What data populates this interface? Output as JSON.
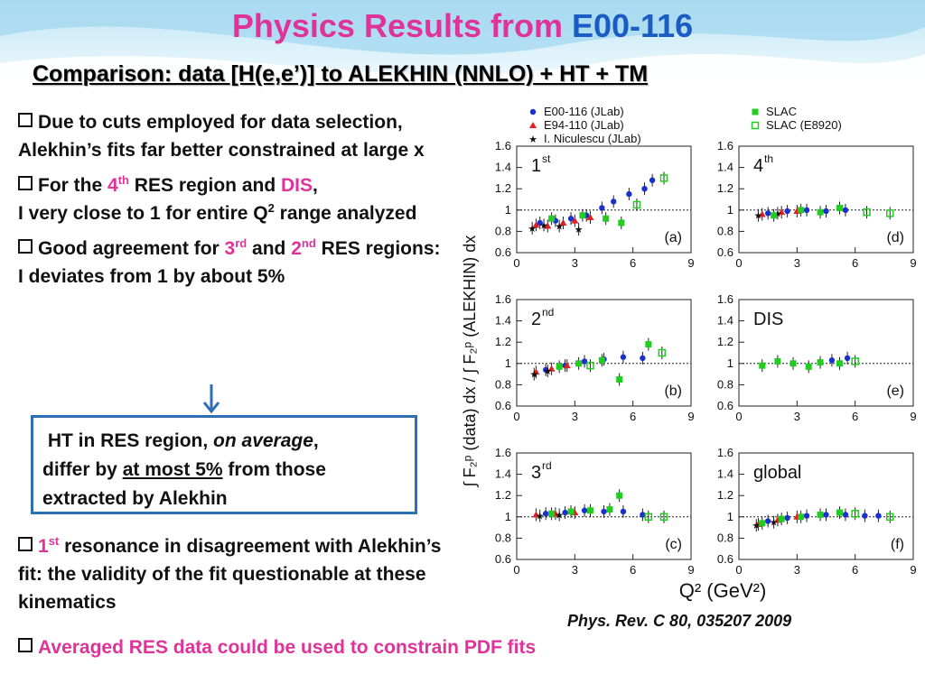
{
  "slide": {
    "title_main": "Physics Results from ",
    "title_accent": "E00-116",
    "subtitle": "Comparison: data [H(e,e’)] to ALEKHIN (NNLO) + HT + TM",
    "colors": {
      "title": "#e0339a",
      "accent": "#1a5bc4",
      "box_border": "#2d6fb7"
    }
  },
  "bullets": [
    {
      "text": "Due to cuts employed for data selection, Alekhin’s fits far better constrained at large x"
    },
    {
      "parts": [
        "For the ",
        "4",
        "th",
        " RES region and ",
        "DIS",
        ",",
        "I very close to 1 for entire Q",
        "2",
        " range analyzed"
      ]
    },
    {
      "parts": [
        "Good agreement for ",
        "3",
        "rd",
        " and ",
        "2",
        "nd",
        " RES regions: I deviates from 1 by about 5%"
      ]
    }
  ],
  "ht_box": {
    "line1": "HT in RES region, ",
    "line1_italic": "on average",
    "line1_end": ",",
    "line2a": "differ by ",
    "line2_underline": "at most 5%",
    "line2b": " from those",
    "line3": "extracted by Alekhin"
  },
  "bullet_res1": {
    "parts": [
      "1",
      "st",
      " resonance in disagreement with Alekhin’s fit: the validity of the fit questionable at these kinematics"
    ]
  },
  "bullet_last": "Averaged RES data could be used to constrain PDF fits",
  "citation": "Phys. Rev. C 80, 035207 2009",
  "figure": {
    "legend": [
      {
        "label": "E00-116 (JLab)",
        "color": "#1a2fd0",
        "marker": "circle"
      },
      {
        "label": "E94-110 (JLab)",
        "color": "#e02020",
        "marker": "triangle"
      },
      {
        "label": "I. Niculescu (JLab)",
        "color": "#111111",
        "marker": "star"
      },
      {
        "label": "SLAC",
        "color": "#22cc22",
        "marker": "square"
      },
      {
        "label": "SLAC (E8920)",
        "color": "#22cc22",
        "marker": "open-square"
      }
    ],
    "y_axis_label": "∫ F₂ᵖ (data) dx / ∫ F₂ᵖ (ALEKHIN) dx",
    "x_axis_label": "Q² (GeV²)",
    "x_ticks": [
      "0",
      "3",
      "6",
      "9"
    ],
    "y_ticks": [
      "0.6",
      "0.8",
      "1",
      "1.2",
      "1.4",
      "1.6"
    ]
  },
  "chart_data": [
    {
      "type": "scatter",
      "panel": "(a)",
      "tag": "1st",
      "xlim": [
        0,
        9
      ],
      "ylim": [
        0.6,
        1.6
      ],
      "series": [
        {
          "name": "E00-116 (JLab)",
          "x": [
            1.2,
            2.0,
            2.8,
            3.6,
            4.4,
            5.0,
            5.8,
            6.6,
            7.0
          ],
          "y": [
            0.88,
            0.9,
            0.92,
            0.95,
            1.02,
            1.08,
            1.15,
            1.2,
            1.28
          ]
        },
        {
          "name": "E94-110 (JLab)",
          "x": [
            1.0,
            1.6,
            2.4,
            3.0,
            3.8
          ],
          "y": [
            0.86,
            0.85,
            0.88,
            0.9,
            0.93
          ]
        },
        {
          "name": "I. Niculescu (JLab)",
          "x": [
            0.8,
            1.4,
            2.2,
            3.2
          ],
          "y": [
            0.83,
            0.86,
            0.85,
            0.82
          ]
        },
        {
          "name": "SLAC",
          "x": [
            1.8,
            3.4,
            4.6,
            5.4
          ],
          "y": [
            0.92,
            0.95,
            0.92,
            0.88
          ]
        },
        {
          "name": "SLAC (E8920)",
          "x": [
            6.2,
            7.6
          ],
          "y": [
            1.05,
            1.3
          ]
        }
      ]
    },
    {
      "type": "scatter",
      "panel": "(d)",
      "tag": "4th",
      "xlim": [
        0,
        9
      ],
      "ylim": [
        0.6,
        1.6
      ],
      "series": [
        {
          "name": "E00-116 (JLab)",
          "x": [
            1.5,
            2.5,
            3.5,
            4.5,
            5.5
          ],
          "y": [
            0.97,
            0.99,
            1.0,
            0.99,
            1.0
          ]
        },
        {
          "name": "E94-110 (JLab)",
          "x": [
            1.2,
            2.2,
            3.0
          ],
          "y": [
            0.96,
            0.98,
            0.99
          ]
        },
        {
          "name": "I. Niculescu (JLab)",
          "x": [
            1.0,
            2.0
          ],
          "y": [
            0.95,
            0.97
          ]
        },
        {
          "name": "SLAC",
          "x": [
            1.8,
            3.2,
            4.2,
            5.2
          ],
          "y": [
            0.95,
            1.0,
            0.98,
            1.02
          ]
        },
        {
          "name": "SLAC (E8920)",
          "x": [
            6.6,
            7.8
          ],
          "y": [
            0.98,
            0.97
          ]
        }
      ]
    },
    {
      "type": "scatter",
      "panel": "(b)",
      "tag": "2nd",
      "xlim": [
        0,
        9
      ],
      "ylim": [
        0.6,
        1.6
      ],
      "series": [
        {
          "name": "E00-116 (JLab)",
          "x": [
            1.5,
            2.5,
            3.5,
            4.5,
            5.5,
            6.5
          ],
          "y": [
            0.94,
            0.98,
            1.02,
            1.04,
            1.06,
            1.05
          ]
        },
        {
          "name": "E94-110 (JLab)",
          "x": [
            1.0,
            1.8,
            2.6
          ],
          "y": [
            0.92,
            0.95,
            0.98
          ]
        },
        {
          "name": "I. Niculescu (JLab)",
          "x": [
            0.9,
            1.6
          ],
          "y": [
            0.9,
            0.93
          ]
        },
        {
          "name": "SLAC",
          "x": [
            2.2,
            3.2,
            4.4,
            5.3,
            6.8
          ],
          "y": [
            0.97,
            1.0,
            1.03,
            0.85,
            1.18
          ]
        },
        {
          "name": "SLAC (E8920)",
          "x": [
            3.8,
            7.5
          ],
          "y": [
            0.98,
            1.1
          ]
        }
      ]
    },
    {
      "type": "scatter",
      "panel": "(e)",
      "tag": "DIS",
      "xlim": [
        0,
        9
      ],
      "ylim": [
        0.6,
        1.6
      ],
      "series": [
        {
          "name": "E00-116 (JLab)",
          "x": [
            4.8,
            5.6
          ],
          "y": [
            1.03,
            1.05
          ]
        },
        {
          "name": "SLAC",
          "x": [
            1.2,
            2.0,
            2.8,
            3.6,
            4.2,
            5.2
          ],
          "y": [
            0.98,
            1.02,
            1.0,
            0.97,
            1.01,
            1.0
          ]
        },
        {
          "name": "SLAC (E8920)",
          "x": [
            6.0
          ],
          "y": [
            1.02
          ]
        }
      ]
    },
    {
      "type": "scatter",
      "panel": "(c)",
      "tag": "3rd",
      "xlim": [
        0,
        9
      ],
      "ylim": [
        0.6,
        1.6
      ],
      "series": [
        {
          "name": "E00-116 (JLab)",
          "x": [
            1.5,
            2.5,
            3.5,
            4.5,
            5.5,
            6.5
          ],
          "y": [
            1.03,
            1.04,
            1.06,
            1.05,
            1.05,
            1.02
          ]
        },
        {
          "name": "E94-110 (JLab)",
          "x": [
            1.0,
            2.0,
            3.0
          ],
          "y": [
            1.02,
            1.03,
            1.04
          ]
        },
        {
          "name": "I. Niculescu (JLab)",
          "x": [
            1.2,
            2.2
          ],
          "y": [
            1.01,
            1.02
          ]
        },
        {
          "name": "SLAC",
          "x": [
            1.8,
            2.8,
            3.8,
            4.8,
            5.3
          ],
          "y": [
            1.03,
            1.05,
            1.06,
            1.07,
            1.2
          ]
        },
        {
          "name": "SLAC (E8920)",
          "x": [
            6.8,
            7.6
          ],
          "y": [
            1.0,
            1.0
          ]
        }
      ]
    },
    {
      "type": "scatter",
      "panel": "(f)",
      "tag": "global",
      "xlim": [
        0,
        9
      ],
      "ylim": [
        0.6,
        1.6
      ],
      "series": [
        {
          "name": "E00-116 (JLab)",
          "x": [
            1.5,
            2.5,
            3.5,
            4.5,
            5.5,
            6.5,
            7.2
          ],
          "y": [
            0.96,
            0.99,
            1.01,
            1.02,
            1.02,
            1.01,
            1.01
          ]
        },
        {
          "name": "E94-110 (JLab)",
          "x": [
            1.0,
            2.0,
            3.0
          ],
          "y": [
            0.93,
            0.97,
            1.0
          ]
        },
        {
          "name": "I. Niculescu (JLab)",
          "x": [
            0.9,
            1.8
          ],
          "y": [
            0.92,
            0.95
          ]
        },
        {
          "name": "SLAC",
          "x": [
            1.2,
            2.2,
            3.2,
            4.2,
            5.2
          ],
          "y": [
            0.94,
            0.98,
            1.0,
            1.02,
            1.04
          ]
        },
        {
          "name": "SLAC (E8920)",
          "x": [
            6.0,
            7.8
          ],
          "y": [
            1.03,
            1.0
          ]
        }
      ]
    }
  ]
}
